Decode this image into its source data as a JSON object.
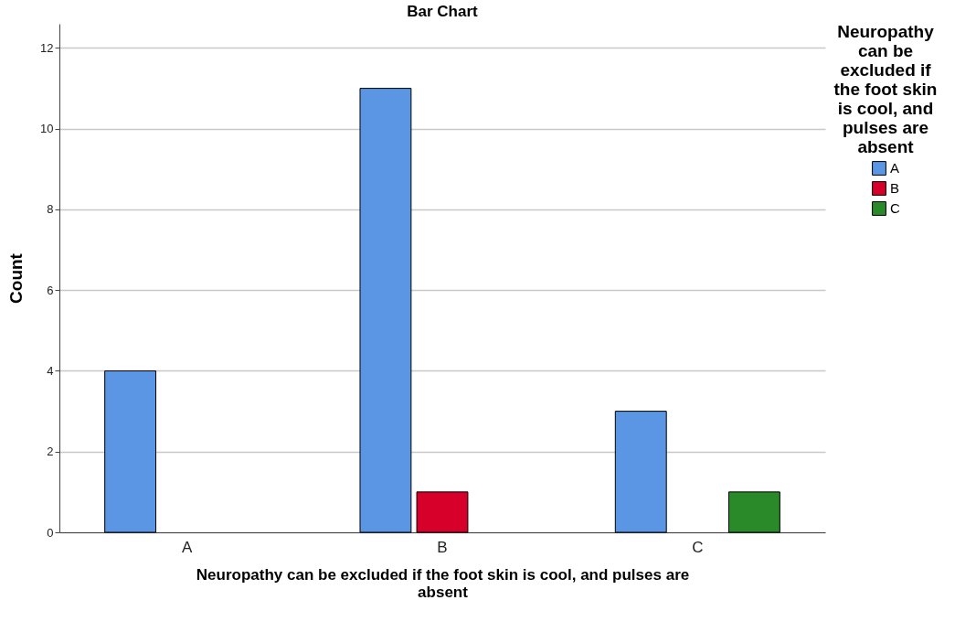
{
  "chart_data": {
    "type": "bar",
    "title": "Bar Chart",
    "xlabel": "Neuropathy can be excluded if the foot skin is cool, and pulses are absent",
    "ylabel": "Count",
    "legend_title": "Neuropathy can be excluded if the foot skin is cool, and pulses are absent",
    "categories": [
      "A",
      "B",
      "C"
    ],
    "series": [
      {
        "name": "A",
        "color": "#5a96e3",
        "values": [
          4,
          11,
          3
        ]
      },
      {
        "name": "B",
        "color": "#d6002a",
        "values": [
          null,
          1,
          null
        ]
      },
      {
        "name": "C",
        "color": "#2a8a2a",
        "values": [
          null,
          null,
          1
        ]
      }
    ],
    "ylim": [
      0,
      12.6
    ],
    "yticks": [
      0,
      2,
      4,
      6,
      8,
      10,
      12
    ],
    "grid": "y",
    "legend": "top right"
  }
}
